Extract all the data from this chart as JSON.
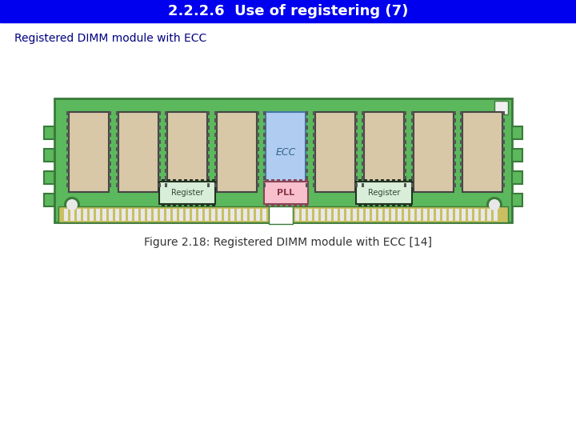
{
  "title": "2.2.2.6  Use of registering (7)",
  "title_bg": "#0000ee",
  "title_color": "#ffffff",
  "subtitle": "Registered DIMM module with ECC",
  "subtitle_color": "#000080",
  "caption": "Figure 2.18: Registered DIMM module with ECC [14]",
  "bg_color": "#ffffff",
  "pcb_color": "#5cb85c",
  "pcb_border": "#3a7a3a",
  "chip_color": "#d8c8a8",
  "chip_border": "#444444",
  "ecc_chip_color": "#b0ccf0",
  "ecc_chip_border": "#4477aa",
  "register_color": "#d8eed8",
  "register_border": "#223322",
  "pll_color": "#f8c0cc",
  "pll_border": "#884455",
  "contact_color": "#e8e8e8",
  "contact_border": "#888888",
  "pin_color": "#555555",
  "hole_color": "#e8e8e8",
  "small_sq_color": "#f0f0f0"
}
